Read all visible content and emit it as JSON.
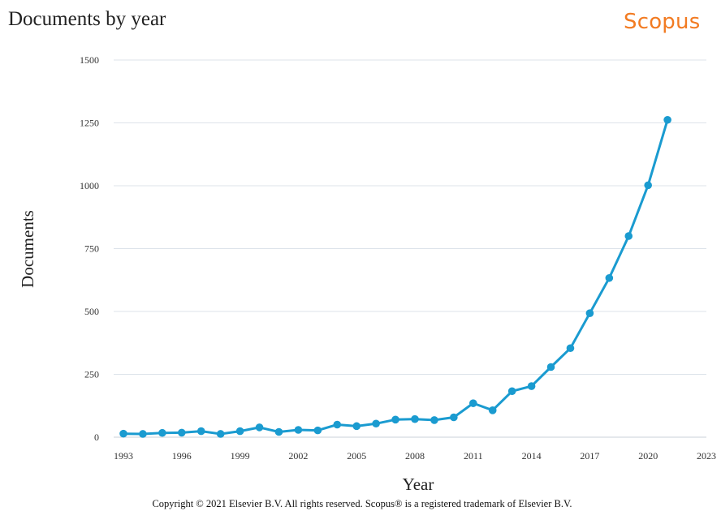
{
  "header": {
    "title": "Documents by year",
    "brand": "Scopus"
  },
  "footer": {
    "copyright": "Copyright © 2021 Elsevier B.V. All rights reserved. Scopus® is a registered trademark of Elsevier B.V."
  },
  "colors": {
    "series": "#1a9bd0",
    "brand": "#f27b22",
    "grid": "#dde3ea"
  },
  "chart_data": {
    "type": "line",
    "title": "Documents by year",
    "xlabel": "Year",
    "ylabel": "Documents",
    "xlim": [
      1993,
      2023
    ],
    "ylim": [
      0,
      1500
    ],
    "xticks": [
      1993,
      1996,
      1999,
      2002,
      2005,
      2008,
      2011,
      2014,
      2017,
      2020,
      2023
    ],
    "yticks": [
      0,
      250,
      500,
      750,
      1000,
      1250,
      1500
    ],
    "grid": true,
    "x": [
      1993,
      1994,
      1995,
      1996,
      1997,
      1998,
      1999,
      2000,
      2001,
      2002,
      2003,
      2004,
      2005,
      2006,
      2007,
      2008,
      2009,
      2010,
      2011,
      2012,
      2013,
      2014,
      2015,
      2016,
      2017,
      2018,
      2019,
      2020,
      2021
    ],
    "values": [
      14,
      13,
      17,
      18,
      24,
      13,
      24,
      39,
      21,
      29,
      27,
      50,
      44,
      54,
      70,
      72,
      68,
      79,
      135,
      107,
      183,
      203,
      279,
      354,
      493,
      633,
      800,
      1002,
      1262
    ]
  }
}
